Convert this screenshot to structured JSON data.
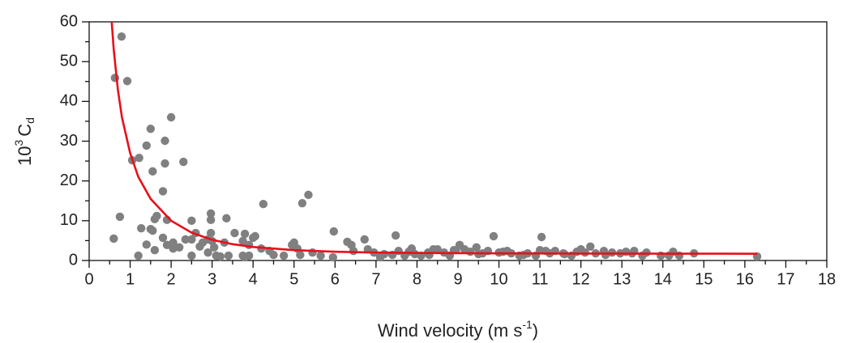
{
  "chart_data": {
    "type": "scatter",
    "xlabel": {
      "text": "Wind velocity (m s",
      "sup": "-1",
      "close": ")"
    },
    "ylabel": {
      "base": "10",
      "sup": "3",
      "symbol": "C",
      "sub": "d"
    },
    "xlim": [
      0,
      18
    ],
    "ylim": [
      0,
      60
    ],
    "xticks": [
      0,
      1,
      2,
      3,
      4,
      5,
      6,
      7,
      8,
      9,
      10,
      11,
      12,
      13,
      14,
      15,
      16,
      17,
      18
    ],
    "yticks": [
      0,
      10,
      20,
      30,
      40,
      50,
      60
    ],
    "series": [
      {
        "type": "scatter",
        "color": "#808080",
        "x": [
          0.79,
          0.63,
          0.93,
          1.05,
          1.22,
          0.6,
          0.75,
          1.27,
          1.2,
          1.4,
          1.4,
          1.5,
          1.55,
          1.55,
          1.6,
          1.65,
          1.5,
          1.6,
          1.8,
          1.85,
          1.85,
          2.0,
          1.9,
          1.8,
          1.9,
          2.05,
          2.05,
          2.2,
          2.3,
          2.35,
          2.5,
          2.5,
          2.6,
          2.5,
          2.7,
          2.77,
          2.9,
          2.97,
          2.97,
          2.97,
          3.0,
          2.9,
          3.05,
          3.1,
          3.2,
          3.35,
          3.4,
          3.3,
          3.55,
          3.75,
          3.8,
          3.9,
          4.0,
          4.05,
          3.8,
          3.9,
          3.75,
          4.25,
          4.2,
          4.4,
          4.5,
          4.75,
          4.95,
          5.0,
          5.08,
          5.2,
          5.35,
          5.15,
          5.45,
          5.65,
          5.97,
          5.95,
          6.3,
          6.4,
          6.45,
          6.72,
          6.8,
          6.95,
          7.1,
          7.4,
          7.48,
          7.55,
          7.7,
          7.87,
          7.95,
          8.1,
          8.27,
          8.4,
          8.5,
          8.66,
          8.8,
          8.95,
          9.04,
          9.16,
          9.3,
          9.45,
          9.6,
          9.73,
          9.87,
          10.0,
          10.2,
          10.3,
          10.5,
          10.7,
          10.9,
          11.04,
          11.14,
          11.24,
          11.37,
          11.57,
          11.77,
          11.9,
          12.1,
          12.23,
          12.36,
          12.56,
          12.76,
          12.96,
          13.1,
          13.25,
          13.5,
          13.6,
          13.95,
          14.15,
          14.25,
          14.4,
          14.76,
          16.3,
          7.2,
          7.8,
          8.3,
          8.9,
          9.5,
          10.1,
          10.6,
          11.0,
          11.6,
          12.0,
          12.6,
          13.3
        ],
        "values": [
          56.3,
          45.9,
          45.1,
          25.2,
          25.8,
          5.5,
          11,
          8.1,
          1.2,
          4,
          28.9,
          33.1,
          22.4,
          7.5,
          10.4,
          11.2,
          7.9,
          2.6,
          17.4,
          30.1,
          24.4,
          36,
          10.2,
          5.7,
          3.9,
          4.5,
          3,
          3.3,
          24.8,
          5.3,
          5.3,
          10,
          6.9,
          1.2,
          3.5,
          4.5,
          5.3,
          6.9,
          11.8,
          10.2,
          4.9,
          2,
          3.3,
          1.2,
          1,
          10.6,
          1.2,
          4.5,
          6.9,
          4.9,
          6.7,
          3.9,
          5.7,
          6.1,
          0.8,
          1.2,
          1.2,
          14.2,
          3,
          2.4,
          1.4,
          1.2,
          3.9,
          4.5,
          3,
          14.4,
          16.5,
          1.4,
          2,
          1.2,
          7.3,
          0.8,
          4.7,
          3.9,
          2.4,
          5.3,
          2.8,
          2,
          0.8,
          1.4,
          6.3,
          2.4,
          1.2,
          3,
          1.6,
          1.2,
          2,
          2.8,
          2.8,
          2,
          1.2,
          2.6,
          3.9,
          2.8,
          2.2,
          3.3,
          1.8,
          2.4,
          6.1,
          2,
          2.4,
          1.8,
          1.2,
          1.8,
          1.2,
          5.9,
          2.4,
          1.8,
          2.4,
          1.8,
          1.2,
          2.2,
          2,
          3.5,
          1.8,
          2.4,
          2,
          1.8,
          2.2,
          1.8,
          1.2,
          2,
          1.2,
          1.2,
          2.2,
          1.2,
          1.8,
          1,
          1.6,
          2.2,
          1.4,
          2.6,
          1.6,
          2.2,
          1.4,
          2.6,
          1.6,
          2.8,
          1.4,
          2.4
        ]
      },
      {
        "type": "line",
        "color": "#e8101a",
        "x": [
          0.55,
          0.6,
          0.7,
          0.8,
          1,
          1.2,
          1.5,
          2,
          2.5,
          3,
          3.5,
          4,
          5,
          6,
          7,
          8,
          10,
          12,
          14,
          16.3
        ],
        "values": [
          60,
          53,
          43,
          36,
          27,
          21,
          15.5,
          10,
          7,
          5.2,
          4.1,
          3.4,
          2.6,
          2.2,
          2.0,
          1.9,
          1.8,
          1.75,
          1.72,
          1.7
        ]
      }
    ]
  }
}
